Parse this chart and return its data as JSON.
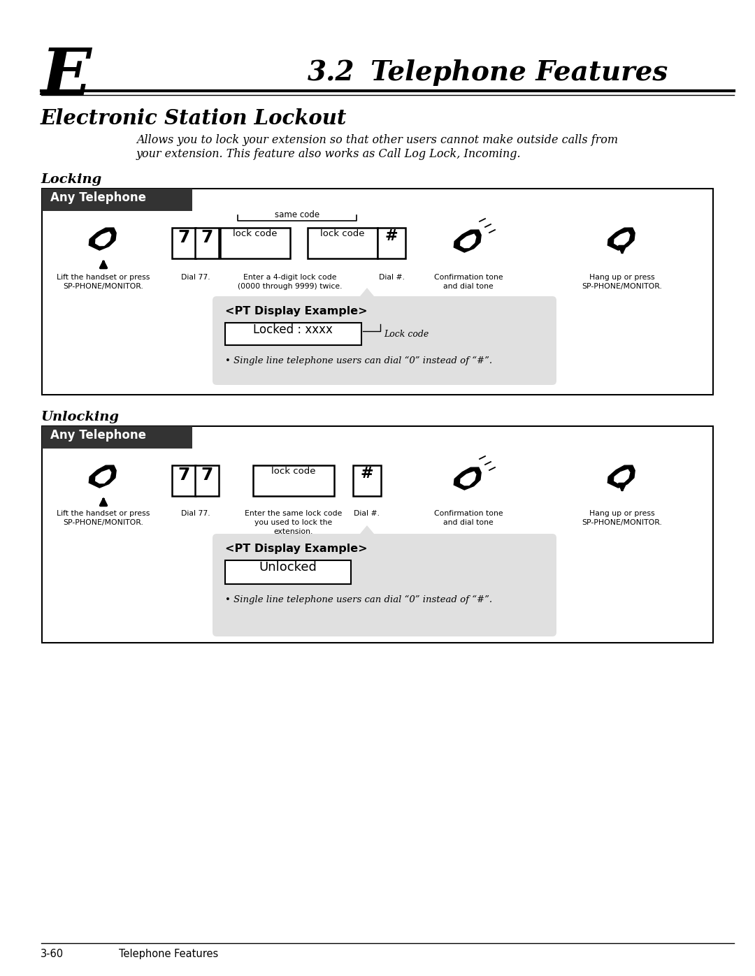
{
  "page_title_letter": "E",
  "page_title_number": "3.2",
  "page_title_text": "Telephone Features",
  "section_title": "Electronic Station Lockout",
  "description_line1": "Allows you to lock your extension so that other users cannot make outside calls from",
  "description_line2": "your extension. This feature also works as Call Log Lock, Incoming.",
  "locking_label": "Locking",
  "unlocking_label": "Unlocking",
  "any_telephone": "Any Telephone",
  "same_code": "same code",
  "lock_steps": [
    {
      "label": "Lift the handset or press\nSP-PHONE/MONITOR."
    },
    {
      "label": "Dial 77."
    },
    {
      "label": "Enter a 4-digit lock code\n(0000 through 9999) twice."
    },
    {
      "label": "Dial #."
    },
    {
      "label": "Confirmation tone\nand dial tone"
    },
    {
      "label": "Hang up or press\nSP-PHONE/MONITOR."
    }
  ],
  "unlock_steps": [
    {
      "label": "Lift the handset or press\nSP-PHONE/MONITOR."
    },
    {
      "label": "Dial 77."
    },
    {
      "label": "Enter the same lock code\nyou used to lock the\nextension."
    },
    {
      "label": "Dial #."
    },
    {
      "label": "Confirmation tone\nand dial tone"
    },
    {
      "label": "Hang up or press\nSP-PHONE/MONITOR."
    }
  ],
  "lock_display_title": "<PT Display Example>",
  "lock_display_content": "Locked : xxxx",
  "lock_code_label": "Lock code",
  "lock_note": "• Single line telephone users can dial “0” instead of “#”.",
  "unlock_display_title": "<PT Display Example>",
  "unlock_display_content": "Unlocked",
  "unlock_note": "• Single line telephone users can dial “0” instead of “#”.",
  "footer_left": "3-60",
  "footer_right": "Telephone Features",
  "bg_color": "#ffffff",
  "display_bg": "#e0e0e0",
  "header_bar_color": "#333333"
}
